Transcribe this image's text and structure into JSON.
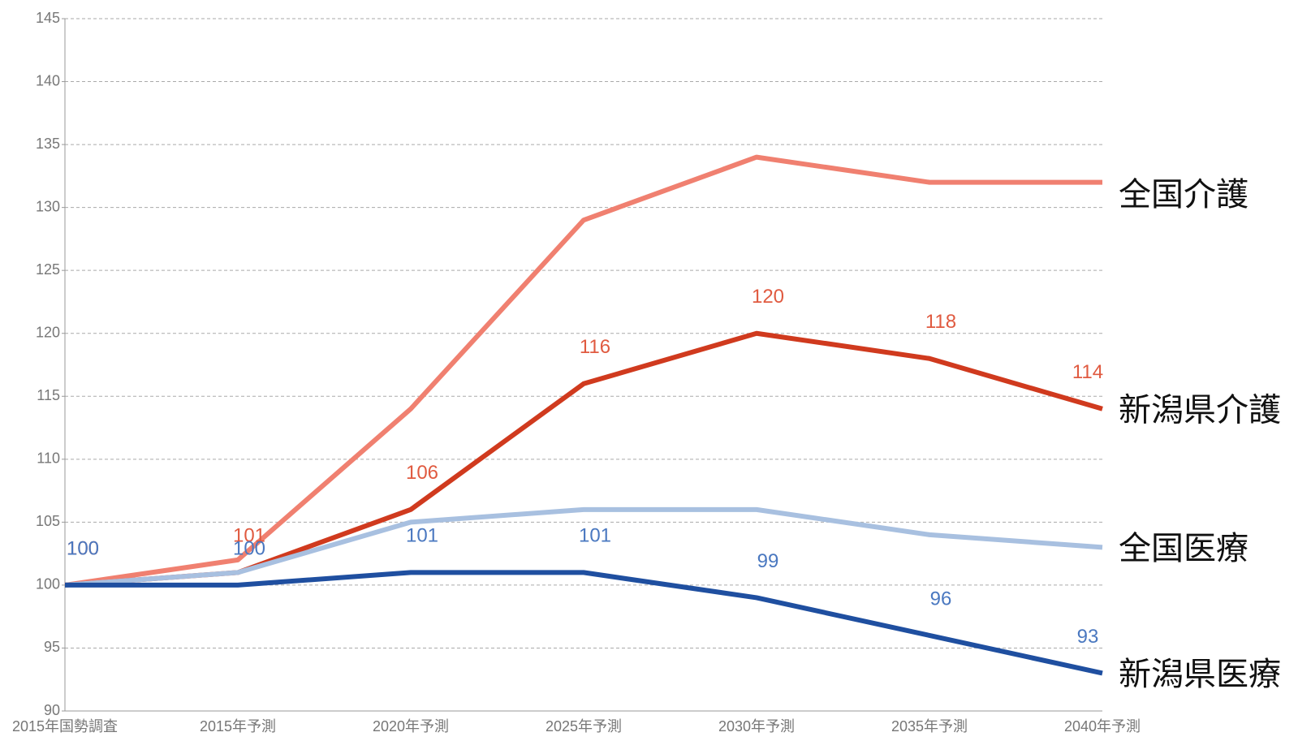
{
  "chart_data": {
    "type": "line",
    "categories": [
      "2015年国勢調査",
      "2015年予測",
      "2020年予測",
      "2025年予測",
      "2030年予測",
      "2035年予測",
      "2040年予測"
    ],
    "series": [
      {
        "name": "全国介護",
        "color": "#f08070",
        "values": [
          100,
          102,
          114,
          129,
          134,
          132,
          132
        ]
      },
      {
        "name": "新潟県介護",
        "color": "#d03a1e",
        "label_color": "#e05a40",
        "data_labels": true,
        "values": [
          100,
          101,
          106,
          116,
          120,
          118,
          114
        ]
      },
      {
        "name": "全国医療",
        "color": "#a8c0e0",
        "values": [
          100,
          101,
          105,
          106,
          106,
          104,
          103
        ]
      },
      {
        "name": "新潟県医療",
        "color": "#1f4fa0",
        "label_color": "#4a78c0",
        "data_labels": true,
        "values": [
          100,
          100,
          101,
          101,
          99,
          96,
          93
        ]
      }
    ],
    "ylim": [
      90,
      145
    ],
    "yticks": [
      90,
      95,
      100,
      105,
      110,
      115,
      120,
      125,
      130,
      135,
      140,
      145
    ],
    "grid": true
  }
}
